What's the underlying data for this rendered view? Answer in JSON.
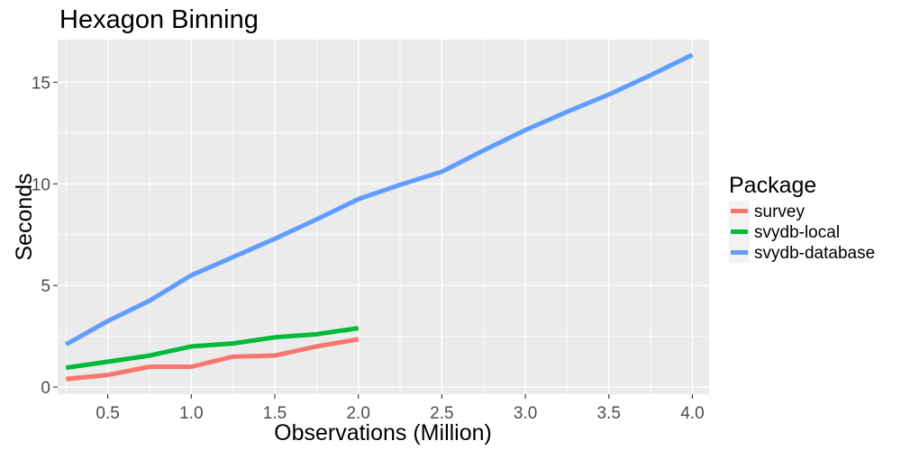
{
  "chart_data": {
    "type": "line",
    "title": "Hexagon Binning",
    "xlabel": "Observations (Million)",
    "ylabel": "Seconds",
    "xlim": [
      0.2,
      4.1
    ],
    "ylim": [
      -0.35,
      17.1
    ],
    "x_ticks": [
      0.5,
      1.0,
      1.5,
      2.0,
      2.5,
      3.0,
      3.5,
      4.0
    ],
    "x_tick_labels": [
      "0.5",
      "1.0",
      "1.5",
      "2.0",
      "2.5",
      "3.0",
      "3.5",
      "4.0"
    ],
    "y_ticks": [
      0,
      5,
      10,
      15
    ],
    "y_tick_labels": [
      "0",
      "5",
      "10",
      "15"
    ],
    "grid": true,
    "legend_title": "Package",
    "legend_position": "right",
    "series": [
      {
        "name": "survey",
        "color": "#F8766D",
        "x": [
          0.25,
          0.5,
          0.75,
          1.0,
          1.25,
          1.5,
          1.75,
          2.0
        ],
        "y": [
          0.4,
          0.6,
          1.0,
          1.0,
          1.5,
          1.55,
          2.0,
          2.35
        ]
      },
      {
        "name": "svydb-local",
        "color": "#00BA38",
        "x": [
          0.25,
          0.5,
          0.75,
          1.0,
          1.25,
          1.5,
          1.75,
          2.0
        ],
        "y": [
          0.95,
          1.25,
          1.55,
          2.0,
          2.15,
          2.45,
          2.6,
          2.9
        ]
      },
      {
        "name": "svydb-database",
        "color": "#619CFF",
        "x": [
          0.25,
          0.5,
          0.75,
          1.0,
          1.25,
          1.5,
          1.75,
          2.0,
          2.25,
          2.5,
          2.75,
          3.0,
          3.25,
          3.5,
          3.75,
          4.0
        ],
        "y": [
          2.1,
          3.25,
          4.25,
          5.5,
          6.4,
          7.3,
          8.25,
          9.25,
          9.95,
          10.6,
          11.65,
          12.65,
          13.55,
          14.4,
          15.35,
          16.35
        ]
      }
    ]
  }
}
